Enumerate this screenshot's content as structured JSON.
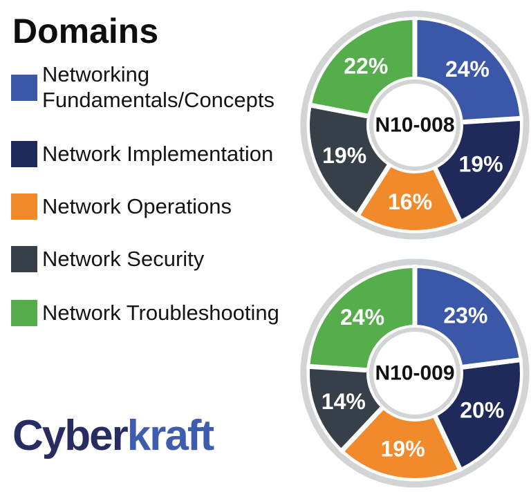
{
  "title": "Domains",
  "legend": {
    "items": [
      {
        "label": "Networking Fundamentals/Concepts",
        "color": "#3B58A8"
      },
      {
        "label": "Network Implementation",
        "color": "#1F2A5B"
      },
      {
        "label": "Network Operations",
        "color": "#F18A2B"
      },
      {
        "label": "Network Security",
        "color": "#373F48"
      },
      {
        "label": "Network Troubleshooting",
        "color": "#55AD4B"
      }
    ]
  },
  "chart_style": {
    "ring_color": "#D3D4D5",
    "separator_color": "#FFFFFF",
    "percent_label_color": "#FFFFFF",
    "center_label_color": "#111111"
  },
  "chart_data": [
    {
      "type": "pie",
      "subtype": "donut",
      "center_label": "N10-008",
      "categories": [
        "Networking Fundamentals/Concepts",
        "Network Implementation",
        "Network Operations",
        "Network Security",
        "Network Troubleshooting"
      ],
      "values": [
        24,
        19,
        16,
        19,
        22
      ],
      "labels": [
        "24%",
        "19%",
        "16%",
        "19%",
        "22%"
      ],
      "colors": [
        "#3B58A8",
        "#1F2A5B",
        "#F18A2B",
        "#373F48",
        "#55AD4B"
      ],
      "start_angle_deg": 0,
      "direction": "clockwise",
      "legend_position": "left"
    },
    {
      "type": "pie",
      "subtype": "donut",
      "center_label": "N10-009",
      "categories": [
        "Networking Fundamentals/Concepts",
        "Network Implementation",
        "Network Operations",
        "Network Security",
        "Network Troubleshooting"
      ],
      "values": [
        23,
        20,
        19,
        14,
        24
      ],
      "labels": [
        "23%",
        "20%",
        "19%",
        "14%",
        "24%"
      ],
      "colors": [
        "#3B58A8",
        "#1F2A5B",
        "#F18A2B",
        "#373F48",
        "#55AD4B"
      ],
      "start_angle_deg": 0,
      "direction": "clockwise",
      "legend_position": "left"
    }
  ],
  "logo": {
    "part1": "Cyber",
    "part2": "kraft",
    "part1_color": "#272D60",
    "part2_color": "#3E5DAD"
  }
}
